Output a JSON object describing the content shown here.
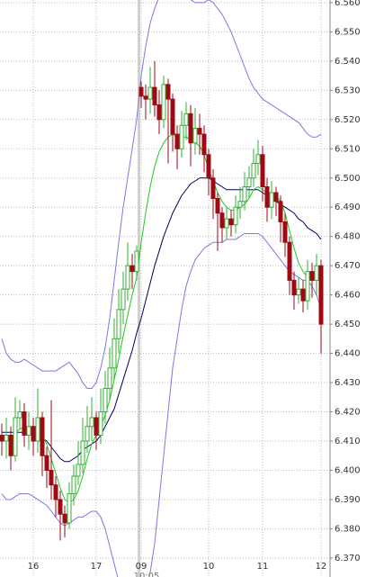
{
  "chart_data": {
    "type": "candlestick",
    "categories": [
      null,
      null,
      null,
      null,
      null,
      null,
      null,
      "16",
      null,
      null,
      null,
      null,
      null,
      null,
      null,
      null,
      null,
      null,
      null,
      null,
      null,
      "17",
      null,
      null,
      null,
      null,
      null,
      null,
      null,
      null,
      null,
      "09",
      null,
      null,
      null,
      null,
      null,
      null,
      null,
      null,
      null,
      null,
      null,
      null,
      null,
      null,
      "10",
      null,
      null,
      null,
      null,
      null,
      null,
      null,
      null,
      null,
      null,
      null,
      "11",
      null,
      null,
      null,
      null,
      null,
      null,
      null,
      null,
      null,
      null,
      null,
      null,
      "12"
    ],
    "open": [
      6.412,
      6.41,
      6.412,
      6.405,
      6.418,
      6.42,
      6.412,
      6.415,
      6.41,
      6.418,
      6.405,
      6.4,
      6.395,
      6.39,
      6.385,
      6.382,
      6.392,
      6.398,
      6.402,
      6.41,
      6.415,
      6.418,
      6.412,
      6.42,
      6.428,
      6.435,
      6.445,
      6.455,
      6.462,
      6.47,
      6.468,
      6.531,
      6.528,
      6.527,
      6.531,
      6.525,
      6.52,
      6.532,
      6.527,
      6.515,
      6.51,
      6.518,
      6.522,
      6.512,
      6.517,
      6.515,
      6.508,
      6.5,
      6.493,
      6.488,
      6.483,
      6.486,
      6.484,
      6.49,
      6.492,
      6.497,
      6.5,
      6.505,
      6.508,
      6.497,
      6.49,
      6.495,
      6.492,
      6.485,
      6.478,
      6.465,
      6.46,
      6.462,
      6.458,
      6.468,
      6.465,
      6.47
    ],
    "high": [
      6.416,
      6.418,
      6.415,
      6.425,
      6.424,
      6.423,
      6.42,
      6.418,
      6.428,
      6.42,
      6.408,
      6.424,
      6.398,
      6.393,
      6.388,
      6.396,
      6.402,
      6.41,
      6.418,
      6.422,
      6.425,
      6.42,
      6.428,
      6.434,
      6.442,
      6.452,
      6.462,
      6.468,
      6.478,
      6.474,
      6.477,
      6.533,
      6.532,
      6.538,
      6.54,
      6.53,
      6.535,
      6.534,
      6.529,
      6.518,
      6.523,
      6.526,
      6.525,
      6.524,
      6.522,
      6.518,
      6.51,
      6.503,
      6.495,
      6.49,
      6.49,
      6.489,
      6.494,
      6.497,
      6.502,
      6.504,
      6.51,
      6.513,
      6.511,
      6.5,
      6.499,
      6.497,
      6.494,
      6.488,
      6.48,
      6.468,
      6.466,
      6.465,
      6.472,
      6.471,
      6.474,
      6.472
    ],
    "low": [
      6.405,
      6.404,
      6.4,
      6.403,
      6.414,
      6.408,
      6.407,
      6.405,
      6.406,
      6.398,
      6.394,
      6.39,
      6.384,
      6.376,
      6.377,
      6.38,
      6.388,
      6.395,
      6.399,
      6.406,
      6.41,
      6.407,
      6.409,
      6.416,
      6.424,
      6.431,
      6.44,
      6.45,
      6.458,
      6.462,
      6.465,
      6.524,
      6.52,
      6.522,
      6.521,
      6.515,
      6.517,
      6.505,
      6.509,
      6.503,
      6.507,
      6.513,
      6.504,
      6.508,
      6.508,
      6.502,
      6.494,
      6.486,
      6.475,
      6.478,
      6.479,
      6.48,
      6.481,
      6.486,
      6.489,
      6.493,
      6.497,
      6.501,
      6.492,
      6.485,
      6.486,
      6.487,
      6.478,
      6.473,
      6.46,
      6.455,
      6.457,
      6.454,
      6.455,
      6.459,
      6.46,
      6.44
    ],
    "close": [
      6.41,
      6.412,
      6.405,
      6.418,
      6.42,
      6.412,
      6.415,
      6.41,
      6.418,
      6.405,
      6.4,
      6.395,
      6.39,
      6.385,
      6.382,
      6.392,
      6.398,
      6.402,
      6.41,
      6.415,
      6.418,
      6.412,
      6.42,
      6.428,
      6.435,
      6.445,
      6.455,
      6.462,
      6.47,
      6.468,
      6.475,
      6.528,
      6.527,
      6.531,
      6.525,
      6.52,
      6.532,
      6.527,
      6.515,
      6.51,
      6.518,
      6.522,
      6.512,
      6.517,
      6.515,
      6.508,
      6.5,
      6.493,
      6.488,
      6.483,
      6.486,
      6.484,
      6.49,
      6.492,
      6.497,
      6.5,
      6.505,
      6.508,
      6.497,
      6.49,
      6.495,
      6.492,
      6.485,
      6.478,
      6.465,
      6.46,
      6.462,
      6.458,
      6.468,
      6.465,
      6.47,
      6.45
    ],
    "up_color": "#33b033",
    "down_color": "#9e0a14",
    "lines": [
      {
        "color": "#7a7ae0",
        "values": [
          6.445,
          6.44,
          6.438,
          6.437,
          6.437,
          6.438,
          6.437,
          6.436,
          6.435,
          6.434,
          6.434,
          6.434,
          6.434,
          6.435,
          6.436,
          6.437,
          6.435,
          6.433,
          6.43,
          6.428,
          6.428,
          6.43,
          6.435,
          6.442,
          6.452,
          6.465,
          6.478,
          6.49,
          6.5,
          6.51,
          6.52,
          6.535,
          6.545,
          6.553,
          6.558,
          6.562,
          6.565,
          6.566,
          6.566,
          6.565,
          6.563,
          6.562,
          6.561,
          6.56,
          6.56,
          6.56,
          6.561,
          6.56,
          6.558,
          6.556,
          6.553,
          6.55,
          6.546,
          6.542,
          6.538,
          6.534,
          6.531,
          6.529,
          6.527,
          6.526,
          6.525,
          6.524,
          6.523,
          6.522,
          6.521,
          6.52,
          6.519,
          6.517,
          6.515,
          6.514,
          6.514,
          6.515
        ]
      },
      {
        "color": "#7a7ae0",
        "values": [
          6.392,
          6.39,
          6.39,
          6.391,
          6.392,
          6.392,
          6.392,
          6.391,
          6.39,
          6.389,
          6.388,
          6.386,
          6.384,
          6.382,
          6.381,
          6.382,
          6.383,
          6.384,
          6.384,
          6.385,
          6.386,
          6.386,
          6.384,
          6.38,
          6.374,
          6.368,
          6.362,
          6.358,
          6.356,
          6.355,
          6.354,
          6.355,
          6.358,
          6.365,
          6.375,
          6.39,
          6.405,
          6.42,
          6.435,
          6.445,
          6.455,
          6.463,
          6.468,
          6.472,
          6.474,
          6.476,
          6.477,
          6.478,
          6.478,
          6.478,
          6.479,
          6.479,
          6.479,
          6.48,
          6.481,
          6.481,
          6.481,
          6.481,
          6.48,
          6.478,
          6.476,
          6.474,
          6.472,
          6.47,
          6.468,
          6.467,
          6.466,
          6.465,
          6.465,
          6.463,
          6.46,
          6.455
        ]
      },
      {
        "color": "#000060",
        "values": [
          6.413,
          6.413,
          6.413,
          6.413,
          6.413,
          6.413,
          6.413,
          6.413,
          6.412,
          6.411,
          6.41,
          6.408,
          6.406,
          6.404,
          6.403,
          6.403,
          6.404,
          6.405,
          6.407,
          6.408,
          6.409,
          6.41,
          6.412,
          6.415,
          6.418,
          6.421,
          6.426,
          6.431,
          6.436,
          6.441,
          6.447,
          6.452,
          6.458,
          6.464,
          6.47,
          6.475,
          6.48,
          6.484,
          6.488,
          6.491,
          6.494,
          6.496,
          6.498,
          6.499,
          6.5,
          6.5,
          6.5,
          6.499,
          6.498,
          6.497,
          6.496,
          6.496,
          6.496,
          6.496,
          6.496,
          6.496,
          6.496,
          6.496,
          6.495,
          6.494,
          6.493,
          6.492,
          6.491,
          6.49,
          6.489,
          6.488,
          6.486,
          6.485,
          6.483,
          6.482,
          6.481,
          6.479
        ]
      },
      {
        "color": "#1ec81e",
        "values": [
          6.412,
          6.412,
          6.411,
          6.413,
          6.414,
          6.415,
          6.414,
          6.414,
          6.414,
          6.412,
          6.409,
          6.404,
          6.399,
          6.394,
          6.39,
          6.389,
          6.39,
          6.393,
          6.398,
          6.404,
          6.409,
          6.412,
          6.415,
          6.419,
          6.424,
          6.431,
          6.438,
          6.446,
          6.453,
          6.46,
          6.466,
          6.478,
          6.488,
          6.497,
          6.504,
          6.509,
          6.512,
          6.514,
          6.515,
          6.514,
          6.514,
          6.514,
          6.513,
          6.512,
          6.511,
          6.508,
          6.503,
          6.499,
          6.495,
          6.492,
          6.49,
          6.489,
          6.489,
          6.49,
          6.491,
          6.493,
          6.496,
          6.497,
          6.496,
          6.495,
          6.494,
          6.494,
          6.492,
          6.488,
          6.482,
          6.476,
          6.471,
          6.468,
          6.466,
          6.466,
          6.467,
          6.465
        ]
      }
    ],
    "ylim": [
      6.3635,
      6.5609
    ],
    "yticks": [
      {
        "value": 6.37,
        "label": "6.370"
      },
      {
        "value": 6.38,
        "label": "6.380"
      },
      {
        "value": 6.39,
        "label": "6.390"
      },
      {
        "value": 6.4,
        "label": "6.400"
      },
      {
        "value": 6.41,
        "label": "6.410"
      },
      {
        "value": 6.42,
        "label": "6.420"
      },
      {
        "value": 6.43,
        "label": "6.430"
      },
      {
        "value": 6.44,
        "label": "6.440"
      },
      {
        "value": 6.45,
        "label": "6.450"
      },
      {
        "value": 6.46,
        "label": "6.460"
      },
      {
        "value": 6.47,
        "label": "6.470"
      },
      {
        "value": 6.48,
        "label": "6.480"
      },
      {
        "value": 6.49,
        "label": "6.490"
      },
      {
        "value": 6.5,
        "label": "6.500"
      },
      {
        "value": 6.51,
        "label": "6.510"
      },
      {
        "value": 6.52,
        "label": "6.520"
      },
      {
        "value": 6.53,
        "label": "6.530"
      },
      {
        "value": 6.54,
        "label": "6.540"
      },
      {
        "value": 6.55,
        "label": "6.550"
      },
      {
        "value": 6.56,
        "label": "6.560"
      }
    ],
    "grid": true,
    "cursor_label": "10:05"
  }
}
